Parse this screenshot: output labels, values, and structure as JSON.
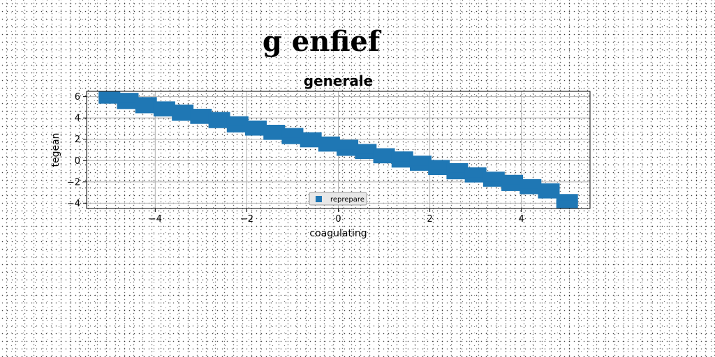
{
  "figure_title": "g enfief",
  "chart_data": {
    "type": "scatter",
    "title": "generale",
    "xlabel": "coagulating",
    "ylabel": "tegean",
    "xlim": [
      -5.5,
      5.5
    ],
    "ylim": [
      -4.5,
      6.5
    ],
    "xticks": [
      -4,
      -2,
      0,
      2,
      4
    ],
    "yticks": [
      -4,
      -2,
      0,
      2,
      4,
      6
    ],
    "xtick_labels": [
      "−4",
      "−2",
      "0",
      "2",
      "4"
    ],
    "ytick_labels": [
      "−4",
      "−2",
      "0",
      "2",
      "4",
      "6"
    ],
    "grid": true,
    "legend_position": "lower center",
    "marker": "square",
    "series": [
      {
        "name": "reprepare",
        "color": "#1f77b4",
        "points": [
          {
            "x": -5.0,
            "y": 5.8
          },
          {
            "x": -5.0,
            "y": 6.3
          },
          {
            "x": -4.6,
            "y": 5.3
          },
          {
            "x": -4.6,
            "y": 5.9
          },
          {
            "x": -4.2,
            "y": 4.9
          },
          {
            "x": -4.2,
            "y": 5.5
          },
          {
            "x": -3.8,
            "y": 4.6
          },
          {
            "x": -3.8,
            "y": 5.1
          },
          {
            "x": -3.4,
            "y": 4.2
          },
          {
            "x": -3.4,
            "y": 4.8
          },
          {
            "x": -3.0,
            "y": 3.9
          },
          {
            "x": -3.0,
            "y": 4.4
          },
          {
            "x": -2.6,
            "y": 3.5
          },
          {
            "x": -2.6,
            "y": 4.1
          },
          {
            "x": -2.2,
            "y": 3.1
          },
          {
            "x": -2.2,
            "y": 3.7
          },
          {
            "x": -1.8,
            "y": 2.8
          },
          {
            "x": -1.8,
            "y": 3.3
          },
          {
            "x": -1.4,
            "y": 2.4
          },
          {
            "x": -1.4,
            "y": 2.9
          },
          {
            "x": -1.0,
            "y": 2.0
          },
          {
            "x": -1.0,
            "y": 2.6
          },
          {
            "x": -0.6,
            "y": 1.7
          },
          {
            "x": -0.6,
            "y": 2.2
          },
          {
            "x": -0.2,
            "y": 1.3
          },
          {
            "x": -0.2,
            "y": 1.8
          },
          {
            "x": 0.2,
            "y": 0.9
          },
          {
            "x": 0.2,
            "y": 1.5
          },
          {
            "x": 0.6,
            "y": 0.6
          },
          {
            "x": 0.6,
            "y": 1.1
          },
          {
            "x": 1.0,
            "y": 0.2
          },
          {
            "x": 1.0,
            "y": 0.7
          },
          {
            "x": 1.4,
            "y": -0.2
          },
          {
            "x": 1.4,
            "y": 0.4
          },
          {
            "x": 1.8,
            "y": -0.5
          },
          {
            "x": 1.8,
            "y": 0.0
          },
          {
            "x": 2.2,
            "y": -0.9
          },
          {
            "x": 2.2,
            "y": -0.4
          },
          {
            "x": 2.6,
            "y": -1.3
          },
          {
            "x": 2.6,
            "y": -0.7
          },
          {
            "x": 3.0,
            "y": -1.6
          },
          {
            "x": 3.0,
            "y": -1.1
          },
          {
            "x": 3.4,
            "y": -2.0
          },
          {
            "x": 3.4,
            "y": -1.5
          },
          {
            "x": 3.8,
            "y": -2.4
          },
          {
            "x": 3.8,
            "y": -1.8
          },
          {
            "x": 4.2,
            "y": -2.7
          },
          {
            "x": 4.2,
            "y": -2.2
          },
          {
            "x": 4.6,
            "y": -3.1
          },
          {
            "x": 4.6,
            "y": -2.6
          },
          {
            "x": 5.0,
            "y": -3.6
          },
          {
            "x": 5.0,
            "y": -4.2
          }
        ]
      }
    ]
  }
}
